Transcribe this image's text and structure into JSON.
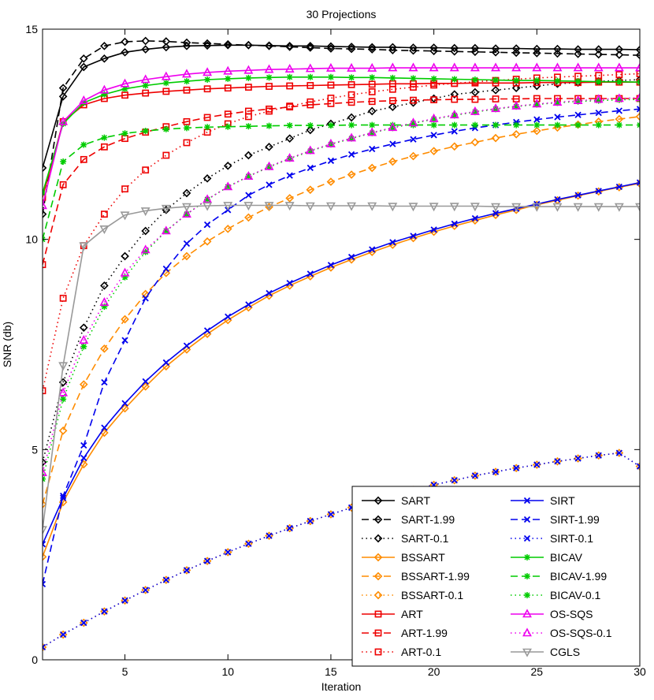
{
  "chart_data": {
    "type": "line",
    "title": "30 Projections",
    "xlabel": "Iteration",
    "ylabel": "SNR (db)",
    "xlim": [
      1,
      30
    ],
    "ylim": [
      0,
      15
    ],
    "xticks": [
      5,
      10,
      15,
      20,
      25,
      30
    ],
    "yticks": [
      0,
      5,
      10,
      15
    ],
    "x": [
      1,
      2,
      3,
      4,
      5,
      6,
      7,
      8,
      9,
      10,
      11,
      12,
      13,
      14,
      15,
      16,
      17,
      18,
      19,
      20,
      21,
      22,
      23,
      24,
      25,
      26,
      27,
      28,
      29,
      30
    ],
    "legend_position": "bottom-right",
    "series": [
      {
        "name": "SART",
        "color": "#000000",
        "dash": "solid",
        "marker": "diamond",
        "values": [
          11.7,
          13.4,
          14.1,
          14.3,
          14.45,
          14.52,
          14.57,
          14.6,
          14.61,
          14.62,
          14.62,
          14.61,
          14.6,
          14.6,
          14.59,
          14.58,
          14.57,
          14.57,
          14.56,
          14.56,
          14.55,
          14.55,
          14.54,
          14.54,
          14.53,
          14.53,
          14.52,
          14.52,
          14.52,
          14.51
        ]
      },
      {
        "name": "SART-1.99",
        "color": "#000000",
        "dash": "dash",
        "marker": "diamond",
        "values": [
          10.6,
          13.6,
          14.3,
          14.6,
          14.7,
          14.72,
          14.71,
          14.68,
          14.66,
          14.64,
          14.62,
          14.6,
          14.58,
          14.56,
          14.54,
          14.53,
          14.52,
          14.5,
          14.49,
          14.48,
          14.47,
          14.46,
          14.45,
          14.44,
          14.43,
          14.42,
          14.41,
          14.4,
          14.39,
          14.38
        ]
      },
      {
        "name": "SART-0.1",
        "color": "#000000",
        "dash": "dot",
        "marker": "diamond",
        "values": [
          4.7,
          6.6,
          7.9,
          8.9,
          9.6,
          10.2,
          10.7,
          11.1,
          11.45,
          11.75,
          12.0,
          12.2,
          12.4,
          12.6,
          12.75,
          12.9,
          13.05,
          13.15,
          13.25,
          13.35,
          13.45,
          13.5,
          13.55,
          13.6,
          13.65,
          13.7,
          13.73,
          13.76,
          13.78,
          13.8
        ]
      },
      {
        "name": "BSSART",
        "color": "#ff8c00",
        "dash": "solid",
        "marker": "diamond",
        "values": [
          2.45,
          3.75,
          4.65,
          5.4,
          5.98,
          6.5,
          6.98,
          7.38,
          7.75,
          8.08,
          8.38,
          8.66,
          8.9,
          9.12,
          9.33,
          9.52,
          9.7,
          9.87,
          10.03,
          10.18,
          10.32,
          10.45,
          10.58,
          10.7,
          10.82,
          10.93,
          11.04,
          11.14,
          11.24,
          11.33
        ]
      },
      {
        "name": "BSSART-1.99",
        "color": "#ff8c00",
        "dash": "dash",
        "marker": "diamond",
        "values": [
          3.7,
          5.45,
          6.55,
          7.4,
          8.1,
          8.7,
          9.2,
          9.6,
          9.95,
          10.25,
          10.52,
          10.77,
          10.98,
          11.18,
          11.37,
          11.54,
          11.7,
          11.85,
          11.98,
          12.1,
          12.21,
          12.31,
          12.41,
          12.5,
          12.58,
          12.66,
          12.73,
          12.8,
          12.86,
          12.92
        ]
      },
      {
        "name": "BSSART-0.1",
        "color": "#ff8c00",
        "dash": "dot",
        "marker": "diamond",
        "values": [
          0.3,
          0.6,
          0.88,
          1.15,
          1.41,
          1.66,
          1.9,
          2.13,
          2.35,
          2.56,
          2.76,
          2.95,
          3.13,
          3.3,
          3.46,
          3.62,
          3.77,
          3.91,
          4.04,
          4.16,
          4.27,
          4.38,
          4.47,
          4.56,
          4.64,
          4.72,
          4.79,
          4.86,
          4.92,
          4.6
        ]
      },
      {
        "name": "ART",
        "color": "#ee0000",
        "dash": "solid",
        "marker": "square",
        "values": [
          11.0,
          12.8,
          13.2,
          13.35,
          13.43,
          13.48,
          13.52,
          13.55,
          13.58,
          13.6,
          13.62,
          13.64,
          13.65,
          13.66,
          13.67,
          13.68,
          13.69,
          13.7,
          13.7,
          13.71,
          13.71,
          13.72,
          13.72,
          13.72,
          13.73,
          13.73,
          13.73,
          13.74,
          13.74,
          13.74
        ]
      },
      {
        "name": "ART-1.99",
        "color": "#ee0000",
        "dash": "dash",
        "marker": "square",
        "values": [
          9.4,
          11.3,
          11.9,
          12.2,
          12.4,
          12.55,
          12.68,
          12.8,
          12.9,
          12.98,
          13.05,
          13.1,
          13.15,
          13.2,
          13.23,
          13.26,
          13.28,
          13.3,
          13.31,
          13.32,
          13.33,
          13.33,
          13.34,
          13.34,
          13.35,
          13.35,
          13.35,
          13.35,
          13.35,
          13.35
        ]
      },
      {
        "name": "ART-0.1",
        "color": "#ee0000",
        "dash": "dot",
        "marker": "square",
        "values": [
          6.4,
          8.6,
          9.85,
          10.6,
          11.2,
          11.65,
          12.0,
          12.3,
          12.55,
          12.75,
          12.92,
          13.05,
          13.17,
          13.27,
          13.36,
          13.44,
          13.51,
          13.57,
          13.62,
          13.67,
          13.71,
          13.75,
          13.78,
          13.81,
          13.84,
          13.86,
          13.88,
          13.9,
          13.92,
          13.94
        ]
      },
      {
        "name": "SIRT",
        "color": "#0000ee",
        "dash": "solid",
        "marker": "x",
        "values": [
          2.75,
          3.85,
          4.8,
          5.52,
          6.1,
          6.62,
          7.07,
          7.47,
          7.83,
          8.16,
          8.45,
          8.72,
          8.96,
          9.18,
          9.39,
          9.58,
          9.76,
          9.93,
          10.08,
          10.23,
          10.37,
          10.5,
          10.62,
          10.73,
          10.84,
          10.95,
          11.05,
          11.15,
          11.25,
          11.35
        ]
      },
      {
        "name": "SIRT-1.99",
        "color": "#0000ee",
        "dash": "dash",
        "marker": "x",
        "values": [
          1.8,
          3.9,
          5.1,
          6.6,
          7.6,
          8.6,
          9.3,
          9.9,
          10.35,
          10.7,
          11.05,
          11.3,
          11.52,
          11.7,
          11.87,
          12.02,
          12.15,
          12.27,
          12.38,
          12.48,
          12.57,
          12.65,
          12.72,
          12.79,
          12.85,
          12.91,
          12.96,
          13.01,
          13.06,
          13.1
        ]
      },
      {
        "name": "SIRT-0.1",
        "color": "#0000ee",
        "dash": "dot",
        "marker": "x",
        "values": [
          0.3,
          0.6,
          0.88,
          1.15,
          1.41,
          1.66,
          1.9,
          2.13,
          2.35,
          2.56,
          2.76,
          2.95,
          3.13,
          3.3,
          3.46,
          3.62,
          3.77,
          3.91,
          4.04,
          4.16,
          4.27,
          4.38,
          4.47,
          4.56,
          4.64,
          4.72,
          4.79,
          4.86,
          4.92,
          4.6
        ]
      },
      {
        "name": "BICAV",
        "color": "#00cc00",
        "dash": "solid",
        "marker": "star",
        "values": [
          11.1,
          12.75,
          13.25,
          13.45,
          13.58,
          13.66,
          13.72,
          13.76,
          13.8,
          13.82,
          13.84,
          13.85,
          13.86,
          13.86,
          13.86,
          13.85,
          13.85,
          13.84,
          13.83,
          13.82,
          13.81,
          13.8,
          13.79,
          13.78,
          13.78,
          13.77,
          13.76,
          13.75,
          13.75,
          13.74
        ]
      },
      {
        "name": "BICAV-1.99",
        "color": "#00cc00",
        "dash": "dash",
        "marker": "star",
        "values": [
          10.0,
          11.85,
          12.25,
          12.42,
          12.52,
          12.58,
          12.62,
          12.65,
          12.67,
          12.68,
          12.69,
          12.7,
          12.71,
          12.71,
          12.71,
          12.72,
          12.72,
          12.72,
          12.72,
          12.72,
          12.72,
          12.72,
          12.72,
          12.72,
          12.72,
          12.72,
          12.72,
          12.72,
          12.72,
          12.72
        ]
      },
      {
        "name": "BICAV-0.1",
        "color": "#00cc00",
        "dash": "dot",
        "marker": "star",
        "values": [
          4.3,
          6.2,
          7.45,
          8.4,
          9.1,
          9.7,
          10.2,
          10.6,
          10.95,
          11.25,
          11.5,
          11.72,
          11.92,
          12.1,
          12.26,
          12.4,
          12.53,
          12.65,
          12.76,
          12.86,
          12.95,
          13.03,
          13.1,
          13.16,
          13.21,
          13.25,
          13.28,
          13.3,
          13.32,
          13.33
        ]
      },
      {
        "name": "OS-SQS",
        "color": "#ee00ee",
        "dash": "solid",
        "marker": "triangle",
        "values": [
          10.8,
          12.8,
          13.3,
          13.55,
          13.7,
          13.8,
          13.87,
          13.93,
          13.97,
          14.0,
          14.02,
          14.04,
          14.05,
          14.06,
          14.07,
          14.07,
          14.07,
          14.08,
          14.08,
          14.08,
          14.08,
          14.08,
          14.08,
          14.08,
          14.08,
          14.08,
          14.08,
          14.08,
          14.08,
          14.08
        ]
      },
      {
        "name": "OS-SQS-0.1",
        "color": "#ee00ee",
        "dash": "dot",
        "marker": "triangle",
        "values": [
          4.45,
          6.35,
          7.6,
          8.5,
          9.2,
          9.75,
          10.2,
          10.6,
          10.95,
          11.25,
          11.5,
          11.73,
          11.93,
          12.11,
          12.27,
          12.41,
          12.54,
          12.66,
          12.77,
          12.87,
          12.96,
          13.04,
          13.11,
          13.17,
          13.22,
          13.26,
          13.3,
          13.33,
          13.35,
          13.37
        ]
      },
      {
        "name": "CGLS",
        "color": "#999999",
        "dash": "solid",
        "marker": "triangle-down",
        "values": [
          3.1,
          7.0,
          9.85,
          10.25,
          10.58,
          10.68,
          10.74,
          10.78,
          10.8,
          10.81,
          10.81,
          10.81,
          10.81,
          10.8,
          10.8,
          10.8,
          10.8,
          10.79,
          10.79,
          10.79,
          10.79,
          10.79,
          10.78,
          10.78,
          10.78,
          10.78,
          10.78,
          10.78,
          10.78,
          10.78
        ]
      }
    ]
  }
}
